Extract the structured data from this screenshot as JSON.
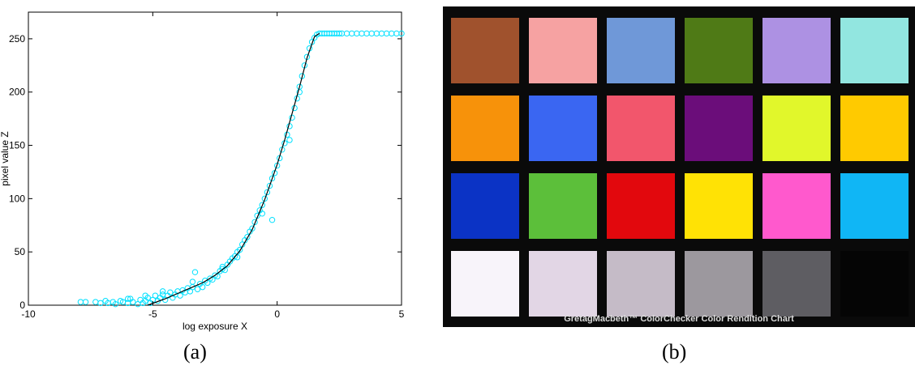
{
  "chart_data": {
    "type": "scatter",
    "xlabel": "log exposure X",
    "ylabel": "pixel value Z",
    "xlim": [
      -10,
      5
    ],
    "ylim": [
      0,
      275
    ],
    "xticks": [
      -10,
      -5,
      0,
      5
    ],
    "yticks": [
      0,
      50,
      100,
      150,
      200,
      250
    ],
    "grid": false,
    "legend": "none",
    "series": [
      {
        "kind": "points",
        "color": "#00e0ff",
        "marker": "circle",
        "points": [
          [
            -7.9,
            3
          ],
          [
            -7.7,
            3
          ],
          [
            -7.3,
            3
          ],
          [
            -7.1,
            2
          ],
          [
            -6.9,
            4
          ],
          [
            -6.8,
            2
          ],
          [
            -6.6,
            3
          ],
          [
            -6.5,
            1
          ],
          [
            -6.3,
            4
          ],
          [
            -6.2,
            3
          ],
          [
            -6.0,
            2
          ],
          [
            -5.9,
            6
          ],
          [
            -5.8,
            3
          ],
          [
            -5.6,
            1
          ],
          [
            -5.5,
            5
          ],
          [
            -5.4,
            2
          ],
          [
            -5.3,
            4
          ],
          [
            -5.2,
            7
          ],
          [
            -5.1,
            2
          ],
          [
            -5.0,
            5
          ],
          [
            -4.9,
            9
          ],
          [
            -4.8,
            4
          ],
          [
            -4.7,
            7
          ],
          [
            -4.6,
            10
          ],
          [
            -4.5,
            5
          ],
          [
            -4.4,
            9
          ],
          [
            -4.3,
            12
          ],
          [
            -4.2,
            7
          ],
          [
            -4.1,
            10
          ],
          [
            -4.0,
            13
          ],
          [
            -3.9,
            9
          ],
          [
            -3.8,
            14
          ],
          [
            -3.7,
            12
          ],
          [
            -3.6,
            16
          ],
          [
            -3.5,
            13
          ],
          [
            -3.4,
            17
          ],
          [
            -3.3,
            31
          ],
          [
            -3.2,
            15
          ],
          [
            -3.1,
            20
          ],
          [
            -3.0,
            17
          ],
          [
            -2.9,
            23
          ],
          [
            -2.8,
            21
          ],
          [
            -2.7,
            25
          ],
          [
            -2.6,
            24
          ],
          [
            -2.5,
            28
          ],
          [
            -2.4,
            27
          ],
          [
            -2.3,
            32
          ],
          [
            -2.2,
            34
          ],
          [
            -2.1,
            33
          ],
          [
            -2.0,
            38
          ],
          [
            -1.9,
            41
          ],
          [
            -1.8,
            44
          ],
          [
            -1.7,
            46
          ],
          [
            -1.6,
            50
          ],
          [
            -1.5,
            52
          ],
          [
            -1.4,
            57
          ],
          [
            -1.3,
            61
          ],
          [
            -1.2,
            64
          ],
          [
            -1.1,
            69
          ],
          [
            -1.0,
            72
          ],
          [
            -0.9,
            78
          ],
          [
            -0.8,
            84
          ],
          [
            -0.7,
            89
          ],
          [
            -0.6,
            94
          ],
          [
            -0.5,
            100
          ],
          [
            -0.4,
            106
          ],
          [
            -0.3,
            112
          ],
          [
            -0.2,
            119
          ],
          [
            -0.1,
            124
          ],
          [
            0.0,
            131
          ],
          [
            0.1,
            138
          ],
          [
            0.2,
            146
          ],
          [
            0.3,
            152
          ],
          [
            0.4,
            160
          ],
          [
            0.5,
            168
          ],
          [
            0.6,
            176
          ],
          [
            0.7,
            185
          ],
          [
            0.8,
            194
          ],
          [
            0.9,
            205
          ],
          [
            1.0,
            215
          ],
          [
            1.1,
            225
          ],
          [
            1.2,
            233
          ],
          [
            1.3,
            241
          ],
          [
            1.4,
            247
          ],
          [
            1.5,
            251
          ],
          [
            1.6,
            254
          ],
          [
            1.7,
            255
          ],
          [
            1.8,
            255
          ],
          [
            1.9,
            255
          ],
          [
            2.0,
            255
          ],
          [
            2.1,
            255
          ],
          [
            2.2,
            255
          ],
          [
            2.3,
            255
          ],
          [
            2.4,
            255
          ],
          [
            2.5,
            255
          ],
          [
            2.6,
            255
          ],
          [
            2.8,
            255
          ],
          [
            3.0,
            255
          ],
          [
            3.2,
            255
          ],
          [
            3.4,
            255
          ],
          [
            3.6,
            255
          ],
          [
            3.8,
            255
          ],
          [
            4.0,
            255
          ],
          [
            4.2,
            255
          ],
          [
            4.4,
            255
          ],
          [
            4.6,
            255
          ],
          [
            4.8,
            255
          ],
          [
            5.0,
            255
          ],
          [
            -0.2,
            80
          ],
          [
            -3.4,
            22
          ],
          [
            -4.6,
            13
          ],
          [
            -2.2,
            36
          ],
          [
            -1.6,
            45
          ],
          [
            -5.3,
            9
          ],
          [
            -6.0,
            6
          ],
          [
            0.5,
            155
          ],
          [
            0.9,
            200
          ],
          [
            -0.6,
            86
          ]
        ]
      },
      {
        "kind": "line",
        "color": "#000000",
        "points": [
          [
            -5.2,
            0
          ],
          [
            -4.5,
            6
          ],
          [
            -4.0,
            11
          ],
          [
            -3.5,
            16
          ],
          [
            -3.0,
            21
          ],
          [
            -2.5,
            28
          ],
          [
            -2.0,
            37
          ],
          [
            -1.5,
            51
          ],
          [
            -1.0,
            71
          ],
          [
            -0.5,
            99
          ],
          [
            0.0,
            132
          ],
          [
            0.3,
            155
          ],
          [
            0.6,
            180
          ],
          [
            0.9,
            205
          ],
          [
            1.2,
            232
          ],
          [
            1.5,
            252
          ],
          [
            1.7,
            255
          ]
        ]
      }
    ]
  },
  "color_checker": {
    "title": "GretagMacbeth™ ColorChecker Color Rendition Chart",
    "patches": [
      "#a0522d",
      "#f6a2a2",
      "#6f98d8",
      "#4f7a16",
      "#ad91e3",
      "#92e6e0",
      "#f7920a",
      "#3a66f2",
      "#f2566c",
      "#6b0d7a",
      "#e1f72b",
      "#ffca00",
      "#0b33c5",
      "#5cbf3a",
      "#e2080d",
      "#ffe205",
      "#ff59cd",
      "#10b6f5",
      "#f8f4fa",
      "#e2d6e5",
      "#c5bbc7",
      "#9c989e",
      "#5e5d62",
      "#050505"
    ]
  },
  "captions": {
    "a": "(a)",
    "b": "(b)"
  }
}
